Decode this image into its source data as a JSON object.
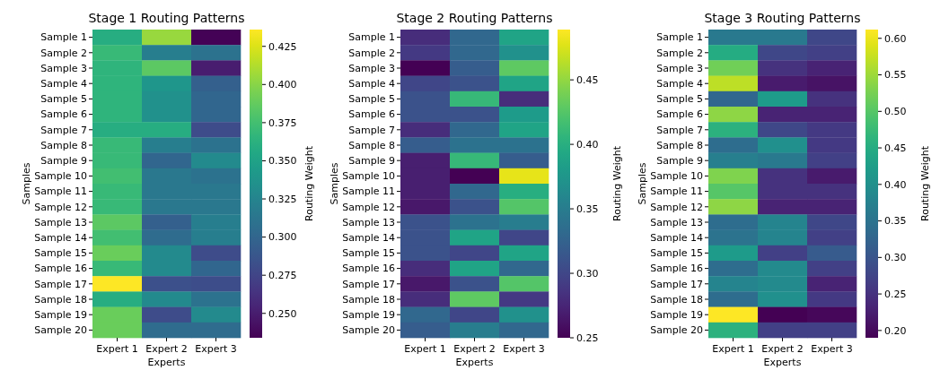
{
  "chart_data": [
    {
      "type": "heatmap",
      "title": "Stage 1 Routing Patterns",
      "xlabel": "Experts",
      "ylabel": "Samples",
      "clabel": "Routing Weight",
      "categories": [
        "Expert 1",
        "Expert 2",
        "Expert 3"
      ],
      "y_categories": [
        "Sample 1",
        "Sample 2",
        "Sample 3",
        "Sample 4",
        "Sample 5",
        "Sample 6",
        "Sample 7",
        "Sample 8",
        "Sample 9",
        "Sample 10",
        "Sample 11",
        "Sample 12",
        "Sample 13",
        "Sample 14",
        "Sample 15",
        "Sample 16",
        "Sample 17",
        "Sample 18",
        "Sample 19",
        "Sample 20"
      ],
      "cells": [
        [
          0.36,
          0.405,
          0.235
        ],
        [
          0.37,
          0.32,
          0.31
        ],
        [
          0.365,
          0.385,
          0.25
        ],
        [
          0.365,
          0.34,
          0.295
        ],
        [
          0.365,
          0.335,
          0.3
        ],
        [
          0.365,
          0.335,
          0.3
        ],
        [
          0.36,
          0.36,
          0.28
        ],
        [
          0.37,
          0.32,
          0.31
        ],
        [
          0.37,
          0.3,
          0.33
        ],
        [
          0.375,
          0.315,
          0.31
        ],
        [
          0.37,
          0.315,
          0.315
        ],
        [
          0.37,
          0.315,
          0.315
        ],
        [
          0.385,
          0.295,
          0.32
        ],
        [
          0.375,
          0.305,
          0.32
        ],
        [
          0.39,
          0.33,
          0.28
        ],
        [
          0.37,
          0.33,
          0.3
        ],
        [
          0.436,
          0.283,
          0.281
        ],
        [
          0.36,
          0.33,
          0.31
        ],
        [
          0.39,
          0.28,
          0.33
        ],
        [
          0.39,
          0.305,
          0.305
        ]
      ],
      "clim": [
        0.234,
        0.436
      ],
      "cticks": [
        {
          "value": 0.25,
          "label": "0.250"
        },
        0.275,
        {
          "value": 0.3,
          "label": "0.300"
        },
        0.325,
        {
          "value": 0.35,
          "label": "0.350"
        },
        0.375,
        {
          "value": 0.4,
          "label": "0.400"
        },
        0.425
      ]
    },
    {
      "type": "heatmap",
      "title": "Stage 2 Routing Patterns",
      "xlabel": "Experts",
      "ylabel": "Samples",
      "clabel": "Routing Weight",
      "categories": [
        "Expert 1",
        "Expert 2",
        "Expert 3"
      ],
      "y_categories": [
        "Sample 1",
        "Sample 2",
        "Sample 3",
        "Sample 4",
        "Sample 5",
        "Sample 6",
        "Sample 7",
        "Sample 8",
        "Sample 9",
        "Sample 10",
        "Sample 11",
        "Sample 12",
        "Sample 13",
        "Sample 14",
        "Sample 15",
        "Sample 16",
        "Sample 17",
        "Sample 18",
        "Sample 19",
        "Sample 20"
      ],
      "cells": [
        [
          0.28,
          0.33,
          0.39
        ],
        [
          0.29,
          0.33,
          0.37
        ],
        [
          0.25,
          0.32,
          0.43
        ],
        [
          0.3,
          0.31,
          0.39
        ],
        [
          0.31,
          0.41,
          0.28
        ],
        [
          0.31,
          0.31,
          0.38
        ],
        [
          0.28,
          0.33,
          0.39
        ],
        [
          0.32,
          0.34,
          0.34
        ],
        [
          0.27,
          0.41,
          0.32
        ],
        [
          0.27,
          0.25,
          0.48
        ],
        [
          0.27,
          0.33,
          0.4
        ],
        [
          0.265,
          0.31,
          0.425
        ],
        [
          0.31,
          0.34,
          0.35
        ],
        [
          0.31,
          0.39,
          0.3
        ],
        [
          0.31,
          0.3,
          0.39
        ],
        [
          0.28,
          0.39,
          0.33
        ],
        [
          0.265,
          0.31,
          0.425
        ],
        [
          0.28,
          0.43,
          0.29
        ],
        [
          0.33,
          0.3,
          0.37
        ],
        [
          0.32,
          0.35,
          0.33
        ]
      ],
      "clim": [
        0.25,
        0.489
      ],
      "cticks": [
        {
          "value": 0.25,
          "label": "0.25"
        },
        {
          "value": 0.3,
          "label": "0.30"
        },
        0.35,
        {
          "value": 0.4,
          "label": "0.40"
        },
        0.45
      ]
    },
    {
      "type": "heatmap",
      "title": "Stage 3 Routing Patterns",
      "xlabel": "Experts",
      "ylabel": "Samples",
      "clabel": "Routing Weight",
      "categories": [
        "Expert 1",
        "Expert 2",
        "Expert 3"
      ],
      "y_categories": [
        "Sample 1",
        "Sample 2",
        "Sample 3",
        "Sample 4",
        "Sample 5",
        "Sample 6",
        "Sample 7",
        "Sample 8",
        "Sample 9",
        "Sample 10",
        "Sample 11",
        "Sample 12",
        "Sample 13",
        "Sample 14",
        "Sample 15",
        "Sample 16",
        "Sample 17",
        "Sample 18",
        "Sample 19",
        "Sample 20"
      ],
      "cells": [
        [
          0.36,
          0.36,
          0.28
        ],
        [
          0.45,
          0.28,
          0.27
        ],
        [
          0.52,
          0.25,
          0.23
        ],
        [
          0.57,
          0.22,
          0.21
        ],
        [
          0.33,
          0.42,
          0.25
        ],
        [
          0.54,
          0.23,
          0.23
        ],
        [
          0.46,
          0.28,
          0.26
        ],
        [
          0.34,
          0.4,
          0.26
        ],
        [
          0.37,
          0.36,
          0.27
        ],
        [
          0.53,
          0.25,
          0.22
        ],
        [
          0.5,
          0.25,
          0.25
        ],
        [
          0.54,
          0.23,
          0.23
        ],
        [
          0.34,
          0.38,
          0.28
        ],
        [
          0.35,
          0.38,
          0.27
        ],
        [
          0.42,
          0.27,
          0.31
        ],
        [
          0.34,
          0.39,
          0.27
        ],
        [
          0.38,
          0.39,
          0.23
        ],
        [
          0.34,
          0.4,
          0.26
        ],
        [
          0.612,
          0.19,
          0.198
        ],
        [
          0.46,
          0.27,
          0.27
        ]
      ],
      "clim": [
        0.19,
        0.612
      ],
      "cticks": [
        {
          "value": 0.2,
          "label": "0.20"
        },
        0.25,
        {
          "value": 0.3,
          "label": "0.30"
        },
        0.35,
        {
          "value": 0.4,
          "label": "0.40"
        },
        0.45,
        {
          "value": 0.5,
          "label": "0.50"
        },
        0.55,
        {
          "value": 0.6,
          "label": "0.60"
        }
      ]
    }
  ]
}
